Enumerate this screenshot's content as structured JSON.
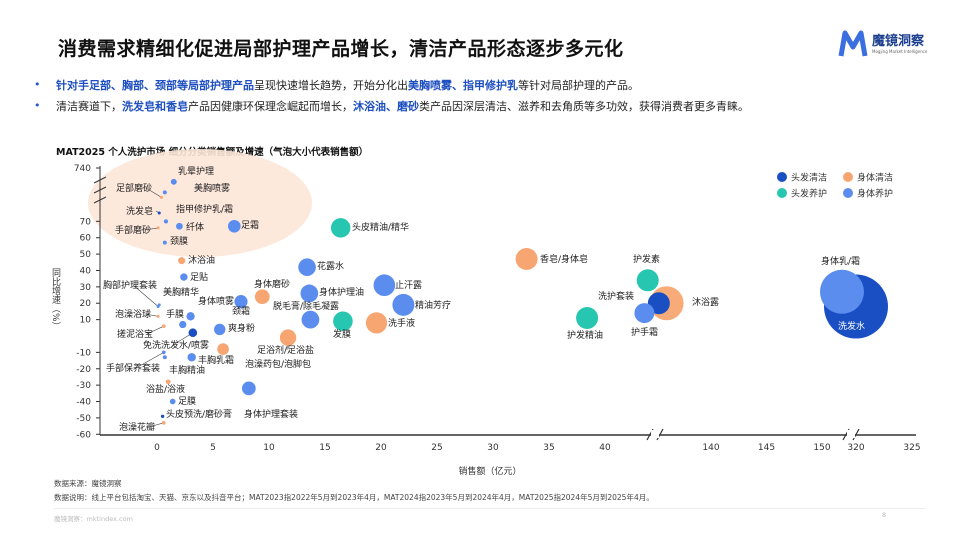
{
  "header": {
    "title": "消费需求精细化促进局部护理产品增长，清洁产品形态逐步多元化",
    "logo_text": "魔镜洞察",
    "logo_sub": "Mogjing Market Intelligence"
  },
  "bullets": [
    {
      "parts": [
        {
          "t": "针对手足部、胸部、颈部等局部护理产品",
          "hl": true
        },
        {
          "t": "呈现快速增长趋势，开始分化出",
          "hl": false
        },
        {
          "t": "美胸喷雾、指甲修护乳",
          "hl": true
        },
        {
          "t": "等针对局部护理的产品。",
          "hl": false
        }
      ]
    },
    {
      "parts": [
        {
          "t": "清洁赛道下，",
          "hl": false
        },
        {
          "t": "洗发皂和香皂",
          "hl": true
        },
        {
          "t": "产品因健康环保理念崛起而增长，",
          "hl": false
        },
        {
          "t": "沐浴油、磨砂",
          "hl": true
        },
        {
          "t": "类产品因深层清洁、滋养和去角质等多功效，获得消费者更多青睐。",
          "hl": false
        }
      ]
    }
  ],
  "chart_data": {
    "type": "scatter",
    "title": "MAT2025 个人洗护市场 细分分类销售额及增速（气泡大小代表销售额）",
    "xlabel": "销售额（亿元）",
    "ylabel": "同比增速（%）",
    "x_ticks": [
      "0",
      "5",
      "10",
      "15",
      "20",
      "25",
      "30",
      "35",
      "40",
      "140",
      "145",
      "150",
      "320",
      "325"
    ],
    "y_ticks": [
      "740",
      "70",
      "60",
      "50",
      "40",
      "30",
      "20",
      "10",
      "-10",
      "-20",
      "-30",
      "-40",
      "-50",
      "-60"
    ],
    "x_axis_breaks": [
      [
        40,
        134
      ],
      [
        152,
        318
      ]
    ],
    "y_axis_break": [
      70,
      740
    ],
    "legend_position": "top-right",
    "legend": [
      {
        "name": "头发清洁",
        "color": "#1a4fc4"
      },
      {
        "name": "身体清洁",
        "color": "#f7a672"
      },
      {
        "name": "头发养护",
        "color": "#26c6b0"
      },
      {
        "name": "身体养护",
        "color": "#5b8def"
      }
    ],
    "highlight_region_color": "#fde6d8",
    "points": [
      {
        "name": "乳晕护理",
        "cat": 3,
        "x": 1.5,
        "y": 400
      },
      {
        "name": "足部磨砂",
        "cat": 1,
        "x": 0.4,
        "y": 200
      },
      {
        "name": "美胸喷雾",
        "cat": 3,
        "x": 0.7,
        "y": 250
      },
      {
        "name": "洗发皂",
        "cat": 0,
        "x": 0.2,
        "y": 100
      },
      {
        "name": "指甲修护乳/霜",
        "cat": 3,
        "x": 0.8,
        "y": 70
      },
      {
        "name": "纤体",
        "cat": 3,
        "x": 2,
        "y": 67
      },
      {
        "name": "手部磨砂",
        "cat": 1,
        "x": 0.1,
        "y": 66
      },
      {
        "name": "颈膜",
        "cat": 3,
        "x": 0.7,
        "y": 57
      },
      {
        "name": "足霜",
        "cat": 3,
        "x": 6.9,
        "y": 67
      },
      {
        "name": "沐浴油",
        "cat": 1,
        "x": 2.2,
        "y": 46
      },
      {
        "name": "足贴",
        "cat": 3,
        "x": 2.4,
        "y": 36
      },
      {
        "name": "胸部护理套装",
        "cat": 3,
        "x": 0.1,
        "y": 18
      },
      {
        "name": "美胸精华",
        "cat": 3,
        "x": 0.2,
        "y": 19
      },
      {
        "name": "身体磨砂",
        "cat": 1,
        "x": 9.4,
        "y": 24
      },
      {
        "name": "身体喷雾",
        "cat": 3,
        "x": 2.3,
        "y": 7
      },
      {
        "name": "颈霜",
        "cat": 3,
        "x": 7.5,
        "y": 21
      },
      {
        "name": "头皮精油/精华",
        "cat": 2,
        "x": 16.4,
        "y": 66
      },
      {
        "name": "花露水",
        "cat": 3,
        "x": 13.4,
        "y": 42
      },
      {
        "name": "身体护理油",
        "cat": 3,
        "x": 13.6,
        "y": 26
      },
      {
        "name": "止汗露",
        "cat": 3,
        "x": 20.3,
        "y": 31
      },
      {
        "name": "精油芳疗",
        "cat": 3,
        "x": 22,
        "y": 19
      },
      {
        "name": "脱毛膏/除毛凝露",
        "cat": 3,
        "x": 13.7,
        "y": 10
      },
      {
        "name": "泡澡浴球",
        "cat": 1,
        "x": 0.1,
        "y": 12
      },
      {
        "name": "手膜",
        "cat": 3,
        "x": 3,
        "y": 12
      },
      {
        "name": "发膜",
        "cat": 2,
        "x": 16.6,
        "y": 9
      },
      {
        "name": "洗手液",
        "cat": 1,
        "x": 19.6,
        "y": 8
      },
      {
        "name": "爽身粉",
        "cat": 3,
        "x": 5.6,
        "y": 4
      },
      {
        "name": "搓泥浴宝",
        "cat": 1,
        "x": 0.6,
        "y": 6
      },
      {
        "name": "免洗洗发水/喷雾",
        "cat": 0,
        "x": 3.2,
        "y": 2
      },
      {
        "name": "足浴剂/足浴盐",
        "cat": 1,
        "x": 11.7,
        "y": -1
      },
      {
        "name": "丰胸乳霜",
        "cat": 3,
        "x": 3.1,
        "y": -13
      },
      {
        "name": "手部保养套装",
        "cat": 3,
        "x": 0.6,
        "y": -10
      },
      {
        "name": "丰胸精油",
        "cat": 3,
        "x": 0.7,
        "y": -13
      },
      {
        "name": "泡澡药包/泡脚包",
        "cat": 1,
        "x": 5.9,
        "y": -8
      },
      {
        "name": "浴盐/浴液",
        "cat": 1,
        "x": 1,
        "y": -28
      },
      {
        "name": "足膜",
        "cat": 3,
        "x": 1.4,
        "y": -40
      },
      {
        "name": "头皮预洗/磨砂膏",
        "cat": 0,
        "x": 0.5,
        "y": -49
      },
      {
        "name": "身体护理套装",
        "cat": 3,
        "x": 8.2,
        "y": -32
      },
      {
        "name": "泡澡花瓣",
        "cat": 1,
        "x": 0.6,
        "y": -53
      },
      {
        "name": "香皂/身体皂",
        "cat": 1,
        "x": 33,
        "y": 47
      },
      {
        "name": "护发精油",
        "cat": 2,
        "x": 38.4,
        "y": 11
      },
      {
        "name": "护发素",
        "cat": 2,
        "x": 134.3,
        "y": 34
      },
      {
        "name": "沐浴露",
        "cat": 1,
        "x": 136,
        "y": 20
      },
      {
        "name": "洗护套装",
        "cat": 0,
        "x": 135.3,
        "y": 20
      },
      {
        "name": "护手霜",
        "cat": 3,
        "x": 134,
        "y": 14
      },
      {
        "name": "洗发水",
        "cat": 0,
        "x": 320,
        "y": 18
      },
      {
        "name": "身体乳/霜",
        "cat": 3,
        "x": 151.8,
        "y": 27
      }
    ]
  },
  "footer": {
    "source": "数据来源：魔镜洞察",
    "note": "数据说明：线上平台包括淘宝、天猫、京东以及抖音平台；MAT2023指2022年5月到2023年4月，MAT2024指2023年5月到2024年4月，MAT2025指2024年5月到2025年4月。",
    "site": "魔镜洞察：mktindex.com",
    "page": "8"
  }
}
